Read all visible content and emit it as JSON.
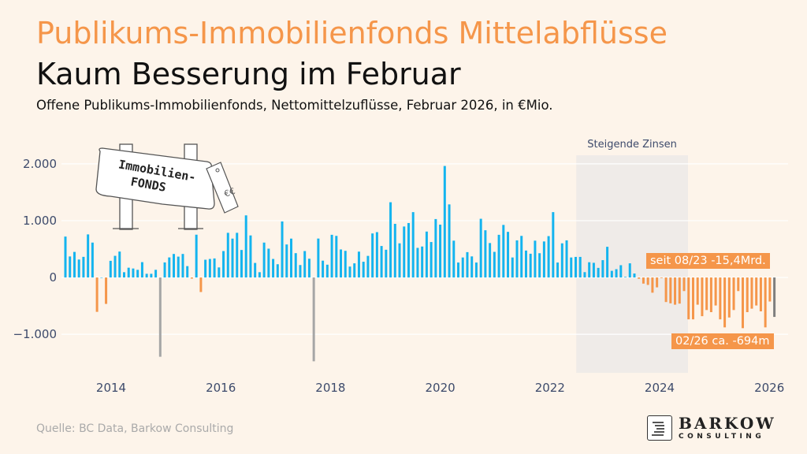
{
  "header": {
    "title": "Publikums-Immobilienfonds Mittelabflüsse",
    "subtitle": "Kaum Besserung im Februar",
    "description": "Offene Publikums-Immobilienfonds, Nettomittelzuflüsse, Februar 2026, in €Mio."
  },
  "illustration": {
    "line1": "Immobilien-",
    "line2": "FONDS"
  },
  "footer": {
    "source": "Quelle: BC Data, Barkow Consulting"
  },
  "logo": {
    "name": "BARKOW",
    "sub": "CONSULTING"
  },
  "colors": {
    "positive": "#14b4ef",
    "negative": "#f5964a",
    "highlight": "#a6a6a6",
    "latest": "#7f7f7f",
    "shade": "#efebe8",
    "axis_text": "#3d4a6b"
  },
  "chart_data": {
    "type": "bar",
    "title": "Offene Publikums-Immobilienfonds, Nettomittelzuflüsse, Februar 2026, in €Mio.",
    "xlabel": "",
    "ylabel": "€Mio.",
    "start_month": "2013-01",
    "frequency": "monthly",
    "ylim": [
      -1650,
      2400
    ],
    "yticks": [
      -1000,
      0,
      1000,
      2000
    ],
    "ytick_labels": [
      "−1.000",
      "0",
      "1.000",
      "2.000"
    ],
    "xticks": [
      2014,
      2016,
      2018,
      2020,
      2022,
      2024,
      2026
    ],
    "xtick_labels": [
      "2014",
      "2016",
      "2018",
      "2020",
      "2022",
      "2024",
      "2026"
    ],
    "grid": true,
    "values": [
      720,
      370,
      450,
      316,
      363,
      758,
      614,
      -605,
      0,
      -465,
      293,
      381,
      456,
      93,
      172,
      158,
      135,
      270,
      65,
      65,
      135,
      -1395,
      265,
      353,
      414,
      367,
      414,
      200,
      -20,
      753,
      -256,
      312,
      326,
      335,
      177,
      465,
      786,
      684,
      786,
      484,
      1093,
      740,
      256,
      93,
      614,
      507,
      326,
      233,
      986,
      581,
      684,
      428,
      219,
      465,
      330,
      -1475,
      685,
      296,
      225,
      751,
      732,
      493,
      469,
      192,
      249,
      455,
      277,
      380,
      775,
      798,
      554,
      488,
      1324,
      944,
      601,
      897,
      958,
      1150,
      521,
      545,
      808,
      624,
      1028,
      930,
      1962,
      1286,
      648,
      263,
      352,
      446,
      371,
      263,
      1033,
      831,
      606,
      451,
      751,
      925,
      803,
      352,
      653,
      732,
      474,
      418,
      648,
      427,
      634,
      728,
      1150,
      263,
      601,
      653,
      352,
      362,
      362,
      94,
      268,
      258,
      169,
      305,
      540,
      117,
      146,
      216,
      10,
      249,
      70,
      -23,
      -108,
      -131,
      -268,
      -174,
      -10,
      -432,
      -455,
      -479,
      -460,
      -239,
      -737,
      -737,
      -479,
      -681,
      -573,
      -610,
      -493,
      -737,
      -878,
      -704,
      -573,
      -239,
      -892,
      -610,
      -549,
      -493,
      -596,
      -878,
      -423,
      -694
    ],
    "highlighted_months": [
      "2014-10",
      "2017-08"
    ],
    "latest_month": "2026-02",
    "shaded_region": {
      "label": "Steigende Zinsen",
      "from": "2022-07",
      "to": "2024-06"
    },
    "annotations": [
      {
        "text": "seit 08/23 -15,4Mrd."
      },
      {
        "text": "02/26 ca. -694m"
      }
    ]
  }
}
